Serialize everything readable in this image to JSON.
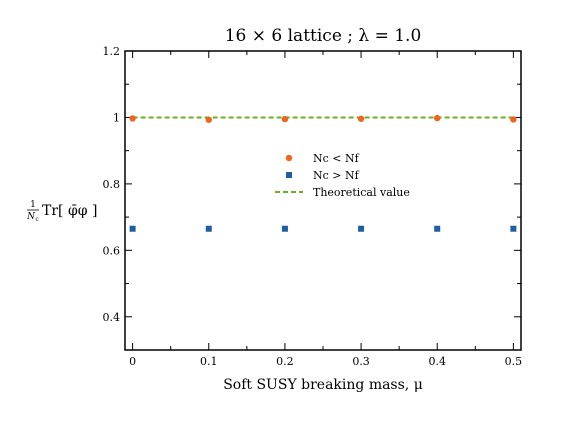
{
  "chart_data": {
    "type": "scatter",
    "title": "16 × 6 lattice ; λ = 1.0",
    "xlabel": "Soft SUSY breaking mass, μ",
    "ylabel": "Tr[ φ̄φ ]",
    "ylabel_prefix": {
      "numerator": "1",
      "denominator": "N",
      "subscript": "c"
    },
    "xlim": [
      -0.01,
      0.51
    ],
    "ylim": [
      0.3,
      1.2
    ],
    "x_ticks": [
      0,
      0.1,
      0.2,
      0.3,
      0.4,
      0.5
    ],
    "x_tick_labels": [
      "0",
      "0.1",
      "0.2",
      "0.3",
      "0.4",
      "0.5"
    ],
    "y_ticks": [
      0.4,
      0.6,
      0.8,
      1.0,
      1.2
    ],
    "y_tick_labels": [
      "0.4",
      "0.6",
      "0.8",
      "1",
      "1.2"
    ],
    "grid": false,
    "legend_position": "center",
    "series": [
      {
        "name": "Nc < Nf",
        "marker": "circle",
        "color": "#f0641e",
        "x": [
          0,
          0.1,
          0.2,
          0.3,
          0.4,
          0.5
        ],
        "y": [
          0.997,
          0.993,
          0.995,
          0.996,
          0.998,
          0.994
        ]
      },
      {
        "name": "Nc > Nf",
        "marker": "square",
        "color": "#1f5fa0",
        "x": [
          0,
          0.1,
          0.2,
          0.3,
          0.4,
          0.5
        ],
        "y": [
          0.665,
          0.665,
          0.665,
          0.665,
          0.665,
          0.665
        ]
      },
      {
        "name": "Theoretical value",
        "marker": "dashed-line",
        "color": "#6ab023",
        "x": [
          0,
          0.5
        ],
        "y": [
          1.0,
          1.0
        ]
      }
    ]
  }
}
